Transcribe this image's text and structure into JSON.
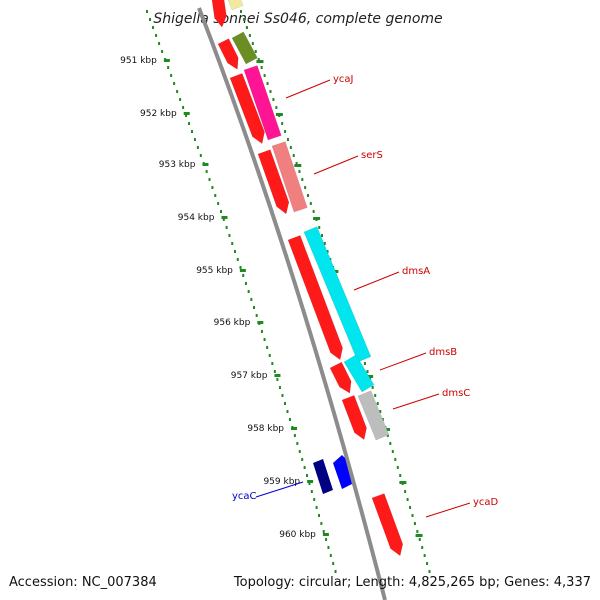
{
  "title": "Shigella sonnei Ss046, complete genome",
  "footer": {
    "accession": "Accession: NC_007384",
    "summary": "Topology: circular; Length: 4,825,265 bp; Genes: 4,337"
  },
  "colors": {
    "backbone": "#8c8c8c",
    "scale_dots": "#1f8a1f",
    "cds_forward": "#ff1a1a",
    "cds_complement": "#ff1a1a",
    "reverse_gene": "#000080",
    "reverse_gene_2": "#0000ff",
    "label_forward": "#cc0000",
    "label_reverse": "#0000cc"
  },
  "scale": [
    {
      "label": "951 kbp"
    },
    {
      "label": "952 kbp"
    },
    {
      "label": "953 kbp"
    },
    {
      "label": "954 kbp"
    },
    {
      "label": "955 kbp"
    },
    {
      "label": "956 kbp"
    },
    {
      "label": "957 kbp"
    },
    {
      "label": "958 kbp"
    },
    {
      "label": "959 kbp"
    },
    {
      "label": "960 kbp"
    }
  ],
  "gene_labels": [
    {
      "text": "ycaJ",
      "color": "#cc0000"
    },
    {
      "text": "serS",
      "color": "#cc0000"
    },
    {
      "text": "dmsA",
      "color": "#cc0000"
    },
    {
      "text": "dmsB",
      "color": "#cc0000"
    },
    {
      "text": "dmsC",
      "color": "#cc0000"
    },
    {
      "text": "ycaD",
      "color": "#cc0000"
    },
    {
      "text": "ycaC",
      "color": "#0000cc"
    }
  ],
  "feature_colors": {
    "yellow": "#f2e8a0",
    "olive": "#6b8e23",
    "magenta": "#ff1493",
    "salmon": "#f08080",
    "cyan": "#00e5ee",
    "gray": "#bdbdbd"
  }
}
